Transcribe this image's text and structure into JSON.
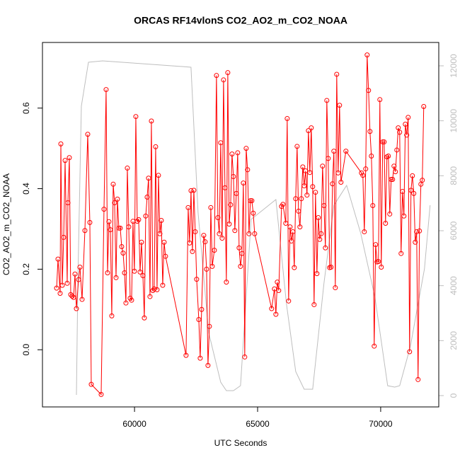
{
  "chart_data": {
    "type": "line",
    "title": "ORCAS RF14vlonS CO2_AO2_m_CO2_NOAA",
    "x_label": "UTC Seconds",
    "y_label": "CO2_AO2_m_CO2_NOAA",
    "xlim": [
      56260,
      72360
    ],
    "ylim": [
      -0.142,
      0.763
    ],
    "y2lim": [
      -412,
      12850
    ],
    "xticks": [
      60000,
      65000,
      70000
    ],
    "yticks": [
      {
        "value": 0,
        "label": "0.0"
      },
      0.2,
      0.4,
      0.6
    ],
    "y2ticks": [
      0,
      2000,
      4000,
      6000,
      8000,
      10000,
      12000
    ],
    "y2_color": "#bebebe",
    "series": [
      {
        "color": "#bebebe",
        "axis": "y2",
        "x": [
          57640,
          57697,
          57840,
          58128,
          58702,
          62294,
          62581,
          63012,
          63501,
          63731,
          64019,
          64306,
          64737,
          65743,
          66174,
          66548,
          66892,
          67237,
          67697,
          68100,
          68617,
          69192,
          69767,
          70284,
          70571,
          70772,
          71203,
          71778,
          72008
        ],
        "values": [
          25,
          4095,
          10533,
          12130,
          12181,
          11950,
          6670,
          2292,
          489,
          180,
          180,
          360,
          6413,
          7134,
          3322,
          876,
          232,
          232,
          4095,
          6928,
          7649,
          5897,
          3580,
          360,
          309,
          360,
          1777,
          4610,
          6928
        ]
      },
      {
        "color": "#ff0000",
        "markers": true,
        "x": [
          56835,
          56892,
          56978,
          57007,
          57065,
          57122,
          57180,
          57266,
          57294,
          57352,
          57409,
          57467,
          57524,
          57582,
          57639,
          57726,
          57783,
          57869,
          57984,
          58099,
          58185,
          58243,
          58645,
          58760,
          58846,
          58904,
          58961,
          59019,
          59076,
          59134,
          59191,
          59249,
          59306,
          59363,
          59421,
          59478,
          59536,
          59593,
          59651,
          59708,
          59766,
          59823,
          59881,
          59938,
          59996,
          60053,
          60111,
          60168,
          60226,
          60283,
          60341,
          60398,
          60455,
          60513,
          60570,
          60628,
          60685,
          60743,
          60800,
          60858,
          60915,
          60973,
          61030,
          61088,
          61145,
          61203,
          61260,
          62093,
          62180,
          62237,
          62295,
          62352,
          62410,
          62467,
          62524,
          62611,
          62668,
          62726,
          62812,
          62869,
          62927,
          62984,
          63042,
          63099,
          63157,
          63243,
          63329,
          63387,
          63444,
          63501,
          63559,
          63616,
          63674,
          63731,
          63789,
          63846,
          63904,
          63961,
          64019,
          64076,
          64134,
          64191,
          64249,
          64306,
          64364,
          64421,
          64478,
          64536,
          64593,
          64651,
          64708,
          64766,
          64823,
          64881,
          65570,
          65685,
          65743,
          65800,
          65858,
          65973,
          66030,
          66145,
          66203,
          66260,
          66318,
          66375,
          66433,
          66490,
          66547,
          66605,
          66662,
          66720,
          66777,
          66835,
          66892,
          66950,
          67007,
          67065,
          67122,
          67180,
          67237,
          67295,
          67352,
          67410,
          67467,
          67525,
          67582,
          67639,
          67697,
          67754,
          67812,
          67869,
          67927,
          67984,
          68042,
          68099,
          68157,
          68214,
          68272,
          68329,
          68387,
          68588,
          69220,
          69277,
          69335,
          69392,
          69450,
          69507,
          69565,
          69622,
          69680,
          69737,
          69795,
          69852,
          69910,
          69967,
          70025,
          70082,
          70140,
          70197,
          70254,
          70312,
          70369,
          70427,
          70484,
          70542,
          70599,
          70657,
          70714,
          70772,
          70829,
          70887,
          70944,
          71002,
          71059,
          71117,
          71174,
          71231,
          71289,
          71346,
          71404,
          71461,
          71519,
          71576,
          71634,
          71691,
          71749
        ],
        "values": [
          0.153,
          0.225,
          0.14,
          0.511,
          0.16,
          0.279,
          0.47,
          0.165,
          0.365,
          0.477,
          0.137,
          0.133,
          0.13,
          0.188,
          0.102,
          0.174,
          0.205,
          0.125,
          0.296,
          0.535,
          0.316,
          -0.086,
          -0.111,
          0.349,
          0.646,
          0.191,
          0.318,
          0.298,
          0.084,
          0.411,
          0.365,
          0.179,
          0.374,
          0.302,
          0.302,
          0.256,
          0.24,
          0.191,
          0.116,
          0.451,
          0.305,
          0.128,
          0.123,
          0.319,
          0.195,
          0.579,
          0.319,
          0.323,
          0.193,
          0.267,
          0.184,
          0.079,
          0.332,
          0.379,
          0.426,
          0.132,
          0.568,
          0.147,
          0.151,
          0.504,
          0.149,
          0.433,
          0.288,
          0.321,
          0.16,
          0.267,
          0.232,
          -0.014,
          0.353,
          0.265,
          0.395,
          0.244,
          0.396,
          0.293,
          0.175,
          0.075,
          -0.021,
          0.1,
          0.284,
          0.268,
          0.2,
          -0.039,
          0.058,
          0.353,
          0.207,
          0.247,
          0.681,
          0.328,
          0.288,
          0.514,
          0.277,
          0.67,
          0.402,
          0.168,
          0.688,
          0.312,
          0.36,
          0.486,
          0.43,
          0.296,
          0.388,
          0.489,
          0.253,
          0.207,
          0.239,
          0.414,
          -0.018,
          0.5,
          0.447,
          0.288,
          0.37,
          0.37,
          0.339,
          0.288,
          0.102,
          0.151,
          0.088,
          0.168,
          0.147,
          0.356,
          0.361,
          0.314,
          0.574,
          0.121,
          0.305,
          0.27,
          0.293,
          0.204,
          0.375,
          0.505,
          0.344,
          0.305,
          0.375,
          0.454,
          0.407,
          0.444,
          0.384,
          0.544,
          0.44,
          0.551,
          0.405,
          0.112,
          0.391,
          0.189,
          0.328,
          0.274,
          0.288,
          0.456,
          0.358,
          0.253,
          0.619,
          0.475,
          0.204,
          0.205,
          0.412,
          0.493,
          0.154,
          0.684,
          0.439,
          0.607,
          0.416,
          0.493,
          0.439,
          0.433,
          0.293,
          0.449,
          0.732,
          0.644,
          0.542,
          0.481,
          0.358,
          0.009,
          0.261,
          0.218,
          0.219,
          0.621,
          0.205,
          0.516,
          0.516,
          0.314,
          0.479,
          0.481,
          0.337,
          0.423,
          0.423,
          0.456,
          0.442,
          0.496,
          0.551,
          0.54,
          0.239,
          0.393,
          0.332,
          0.56,
          0.533,
          0.577,
          -0.005,
          0.396,
          0.432,
          0.388,
          0.267,
          0.293,
          -0.074,
          0.295,
          0.411,
          0.421,
          0.604
        ]
      }
    ]
  }
}
